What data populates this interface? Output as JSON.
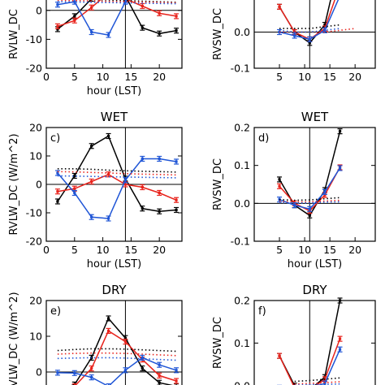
{
  "chart_data": [
    {
      "id": "a",
      "type": "line",
      "panel_label": "",
      "title": "",
      "xlabel": "hour (LST)",
      "ylabel": "RVLW_DC",
      "ylim": [
        -20,
        5
      ],
      "xlim": [
        0,
        24
      ],
      "yticks": [
        "-20",
        "-10",
        "0"
      ],
      "xticks": [
        "0",
        "5",
        "10",
        "15",
        "20"
      ],
      "hline": 0,
      "vline": 14,
      "series": [
        {
          "color": "#000000",
          "style": "solid",
          "errorbars": true,
          "x": [
            2,
            5,
            8,
            11,
            14,
            17,
            20,
            23
          ],
          "y": [
            -6.5,
            -2,
            4,
            10,
            5,
            -6,
            -8,
            -7
          ]
        },
        {
          "color": "#e8221b",
          "style": "solid",
          "errorbars": true,
          "x": [
            2,
            5,
            8,
            11,
            14,
            17,
            20,
            23
          ],
          "y": [
            -5.5,
            -3.5,
            1,
            6,
            4,
            1.5,
            -1,
            -2
          ]
        },
        {
          "color": "#1f55d6",
          "style": "solid",
          "errorbars": true,
          "x": [
            2,
            5,
            8,
            11,
            14,
            17,
            20,
            23
          ],
          "y": [
            2,
            3,
            -7.5,
            -8.5,
            3,
            8,
            7.5,
            6
          ]
        },
        {
          "color": "#000000",
          "style": "dotted",
          "errorbars": false,
          "x": [
            2,
            5,
            8,
            11,
            14,
            17,
            20,
            23
          ],
          "y": [
            4,
            4,
            3.8,
            3.6,
            3.4,
            3.2,
            3.0,
            2.8
          ]
        },
        {
          "color": "#e8221b",
          "style": "dotted",
          "errorbars": false,
          "x": [
            2,
            5,
            8,
            11,
            14,
            17,
            20,
            23
          ],
          "y": [
            3.5,
            3.4,
            3.3,
            3.1,
            3.0,
            2.9,
            2.8,
            2.6
          ]
        },
        {
          "color": "#1f55d6",
          "style": "dotted",
          "errorbars": false,
          "x": [
            2,
            5,
            8,
            11,
            14,
            17,
            20,
            23
          ],
          "y": [
            3.0,
            2.9,
            2.8,
            2.7,
            2.6,
            2.5,
            2.4,
            2.3
          ]
        }
      ]
    },
    {
      "id": "b",
      "type": "line",
      "panel_label": "",
      "title": "",
      "xlabel": "",
      "ylabel": "RVSW_DC",
      "ylim": [
        -0.1,
        0.1
      ],
      "xlim": [
        0,
        24
      ],
      "yticks": [
        "-0.1",
        "0.0"
      ],
      "xticks": [
        "5",
        "10",
        "15",
        "20"
      ],
      "hline": 0,
      "vline": 11,
      "series": [
        {
          "color": "#000000",
          "style": "solid",
          "errorbars": true,
          "x": [
            5,
            8,
            11,
            14,
            17
          ],
          "y": [
            0.07,
            0.0,
            -0.03,
            0.02,
            0.2
          ]
        },
        {
          "color": "#e8221b",
          "style": "solid",
          "errorbars": true,
          "x": [
            5,
            8,
            11,
            14,
            17
          ],
          "y": [
            0.07,
            0.0,
            -0.02,
            0.01,
            0.13
          ]
        },
        {
          "color": "#1f55d6",
          "style": "solid",
          "errorbars": true,
          "x": [
            5,
            8,
            11,
            14,
            17
          ],
          "y": [
            0.0,
            -0.01,
            -0.02,
            0.005,
            0.1
          ]
        },
        {
          "color": "#000000",
          "style": "dotted",
          "errorbars": false,
          "x": [
            5,
            8,
            11,
            14,
            17
          ],
          "y": [
            0.01,
            0.01,
            0.01,
            0.015,
            0.02
          ]
        },
        {
          "color": "#e8221b",
          "style": "dotted",
          "errorbars": false,
          "x": [
            5,
            8,
            11,
            14,
            17,
            20
          ],
          "y": [
            0.0,
            0.0,
            0.0,
            0.0,
            0.005,
            0.01
          ]
        },
        {
          "color": "#1f55d6",
          "style": "dotted",
          "errorbars": false,
          "x": [
            5,
            8,
            11,
            14,
            17
          ],
          "y": [
            0.005,
            0.0,
            0.0,
            0.005,
            0.01
          ]
        }
      ]
    },
    {
      "id": "c",
      "type": "line",
      "panel_label": "c)",
      "title": "WET",
      "xlabel": "hour (LST)",
      "ylabel": "RVLW_DC  (W/m^2)",
      "ylim": [
        -20,
        20
      ],
      "xlim": [
        0,
        24
      ],
      "yticks": [
        "-20",
        "-10",
        "0",
        "10",
        "20"
      ],
      "xticks": [
        "0",
        "5",
        "10",
        "15",
        "20"
      ],
      "hline": 0,
      "vline": 14,
      "series": [
        {
          "color": "#000000",
          "style": "solid",
          "errorbars": true,
          "x": [
            2,
            5,
            8,
            11,
            14,
            17,
            20,
            23
          ],
          "y": [
            -6,
            3,
            13.5,
            17,
            2,
            -8.5,
            -9.5,
            -9
          ]
        },
        {
          "color": "#e8221b",
          "style": "solid",
          "errorbars": true,
          "x": [
            2,
            5,
            8,
            11,
            14,
            17,
            20,
            23
          ],
          "y": [
            -2.5,
            -1.5,
            1,
            3.5,
            0,
            -1,
            -3,
            -5.5
          ]
        },
        {
          "color": "#1f55d6",
          "style": "solid",
          "errorbars": true,
          "x": [
            2,
            5,
            8,
            11,
            14,
            17,
            20,
            23
          ],
          "y": [
            4,
            -3,
            -11.5,
            -12,
            1.5,
            9,
            9,
            8
          ]
        },
        {
          "color": "#000000",
          "style": "dotted",
          "errorbars": false,
          "x": [
            2,
            5,
            8,
            11,
            14,
            17,
            20,
            23
          ],
          "y": [
            5.5,
            5.5,
            5.3,
            5.0,
            4.8,
            4.6,
            4.5,
            4.3
          ]
        },
        {
          "color": "#e8221b",
          "style": "dotted",
          "errorbars": false,
          "x": [
            2,
            5,
            8,
            11,
            14,
            17,
            20,
            23
          ],
          "y": [
            4.5,
            4.4,
            4.2,
            4.0,
            3.8,
            3.6,
            3.5,
            3.3
          ]
        },
        {
          "color": "#1f55d6",
          "style": "dotted",
          "errorbars": false,
          "x": [
            2,
            5,
            8,
            11,
            14,
            17,
            20,
            23
          ],
          "y": [
            3.0,
            2.9,
            2.8,
            2.7,
            2.6,
            2.5,
            2.4,
            2.3
          ]
        }
      ]
    },
    {
      "id": "d",
      "type": "line",
      "panel_label": "d)",
      "title": "WET",
      "xlabel": "hour (LST)",
      "ylabel": "RVSW_DC",
      "ylim": [
        -0.1,
        0.2
      ],
      "xlim": [
        0,
        24
      ],
      "yticks": [
        "-0.1",
        "0.0",
        "0.1",
        "0.2"
      ],
      "xticks": [
        "5",
        "10",
        "15",
        "20"
      ],
      "hline": 0,
      "vline": 11,
      "series": [
        {
          "color": "#000000",
          "style": "solid",
          "errorbars": true,
          "x": [
            5,
            8,
            11,
            14,
            17
          ],
          "y": [
            0.063,
            -0.005,
            -0.032,
            0.035,
            0.19
          ]
        },
        {
          "color": "#e8221b",
          "style": "solid",
          "errorbars": true,
          "x": [
            5,
            8,
            11,
            14,
            17
          ],
          "y": [
            0.045,
            0.0,
            -0.02,
            0.022,
            0.095
          ]
        },
        {
          "color": "#1f55d6",
          "style": "solid",
          "errorbars": true,
          "x": [
            5,
            8,
            11,
            14,
            17
          ],
          "y": [
            0.01,
            -0.005,
            -0.015,
            0.03,
            0.093
          ]
        },
        {
          "color": "#000000",
          "style": "dotted",
          "errorbars": false,
          "x": [
            5,
            8,
            11,
            14,
            17
          ],
          "y": [
            0.01,
            0.008,
            0.009,
            0.012,
            0.015
          ]
        },
        {
          "color": "#e8221b",
          "style": "dotted",
          "errorbars": false,
          "x": [
            5,
            8,
            11,
            14,
            17
          ],
          "y": [
            0.005,
            0.004,
            0.004,
            0.006,
            0.008
          ]
        },
        {
          "color": "#1f55d6",
          "style": "dotted",
          "errorbars": false,
          "x": [
            5,
            8,
            11,
            14,
            17
          ],
          "y": [
            0.002,
            0.001,
            0.001,
            0.003,
            0.004
          ]
        }
      ]
    },
    {
      "id": "e",
      "type": "line",
      "panel_label": "e)",
      "title": "DRY",
      "xlabel": "",
      "ylabel": "RVLW_DC  (W/m^2)",
      "ylim": [
        -5,
        20
      ],
      "xlim": [
        0,
        24
      ],
      "yticks": [
        "0",
        "10",
        "20"
      ],
      "xticks": [],
      "hline": 0,
      "vline": 14,
      "series": [
        {
          "color": "#000000",
          "style": "solid",
          "errorbars": true,
          "x": [
            2,
            5,
            8,
            11,
            14,
            17,
            20,
            23
          ],
          "y": [
            -5,
            -3.5,
            4,
            15,
            9.5,
            1,
            -3,
            -4
          ]
        },
        {
          "color": "#e8221b",
          "style": "solid",
          "errorbars": true,
          "x": [
            2,
            5,
            8,
            11,
            14,
            17,
            20,
            23
          ],
          "y": [
            -5,
            -4,
            1,
            11.5,
            8.5,
            3.5,
            -1,
            -2.5
          ]
        },
        {
          "color": "#1f55d6",
          "style": "solid",
          "errorbars": true,
          "x": [
            2,
            5,
            8,
            11,
            14,
            17,
            20,
            23
          ],
          "y": [
            -0.2,
            -0.3,
            -1.5,
            -4,
            0.5,
            4,
            2,
            0.5
          ]
        },
        {
          "color": "#000000",
          "style": "dotted",
          "errorbars": false,
          "x": [
            2,
            5,
            8,
            11,
            14,
            17,
            20,
            23
          ],
          "y": [
            6,
            6.3,
            6.5,
            6.5,
            6.4,
            6.2,
            6.0,
            5.8
          ]
        },
        {
          "color": "#e8221b",
          "style": "dotted",
          "errorbars": false,
          "x": [
            2,
            5,
            8,
            11,
            14,
            17,
            20,
            23
          ],
          "y": [
            5.0,
            5.2,
            5.3,
            5.3,
            5.2,
            5.0,
            4.8,
            4.6
          ]
        },
        {
          "color": "#1f55d6",
          "style": "dotted",
          "errorbars": false,
          "x": [
            2,
            5,
            8,
            11,
            14,
            17,
            20,
            23
          ],
          "y": [
            3.8,
            3.9,
            4.0,
            4.0,
            3.9,
            3.7,
            3.5,
            3.3
          ]
        }
      ]
    },
    {
      "id": "f",
      "type": "line",
      "panel_label": "f)",
      "title": "DRY",
      "xlabel": "",
      "ylabel": "RVSW_DC",
      "ylim": [
        -0.01,
        0.2
      ],
      "xlim": [
        0,
        24
      ],
      "yticks": [
        "0.0",
        "0.1",
        "0.2"
      ],
      "xticks": [],
      "hline": 0,
      "vline": 11,
      "series": [
        {
          "color": "#000000",
          "style": "solid",
          "errorbars": true,
          "x": [
            5,
            8,
            11,
            14,
            17
          ],
          "y": [
            0.07,
            0.0,
            -0.01,
            0.02,
            0.2
          ]
        },
        {
          "color": "#e8221b",
          "style": "solid",
          "errorbars": true,
          "x": [
            5,
            8,
            11,
            14,
            17
          ],
          "y": [
            0.07,
            -0.005,
            -0.01,
            0.015,
            0.11
          ]
        },
        {
          "color": "#1f55d6",
          "style": "solid",
          "errorbars": true,
          "x": [
            5,
            8,
            11,
            14,
            17
          ],
          "y": [
            -0.005,
            -0.007,
            -0.005,
            0.005,
            0.085
          ]
        },
        {
          "color": "#000000",
          "style": "dotted",
          "errorbars": false,
          "x": [
            8,
            11,
            14,
            17
          ],
          "y": [
            0.01,
            0.012,
            0.015,
            0.018
          ]
        },
        {
          "color": "#e8221b",
          "style": "dotted",
          "errorbars": false,
          "x": [
            8,
            11,
            14,
            17
          ],
          "y": [
            0.004,
            0.005,
            0.007,
            0.009
          ]
        },
        {
          "color": "#1f55d6",
          "style": "dotted",
          "errorbars": false,
          "x": [
            8,
            11,
            14,
            17
          ],
          "y": [
            0.001,
            0.002,
            0.003,
            0.004
          ]
        }
      ]
    }
  ]
}
